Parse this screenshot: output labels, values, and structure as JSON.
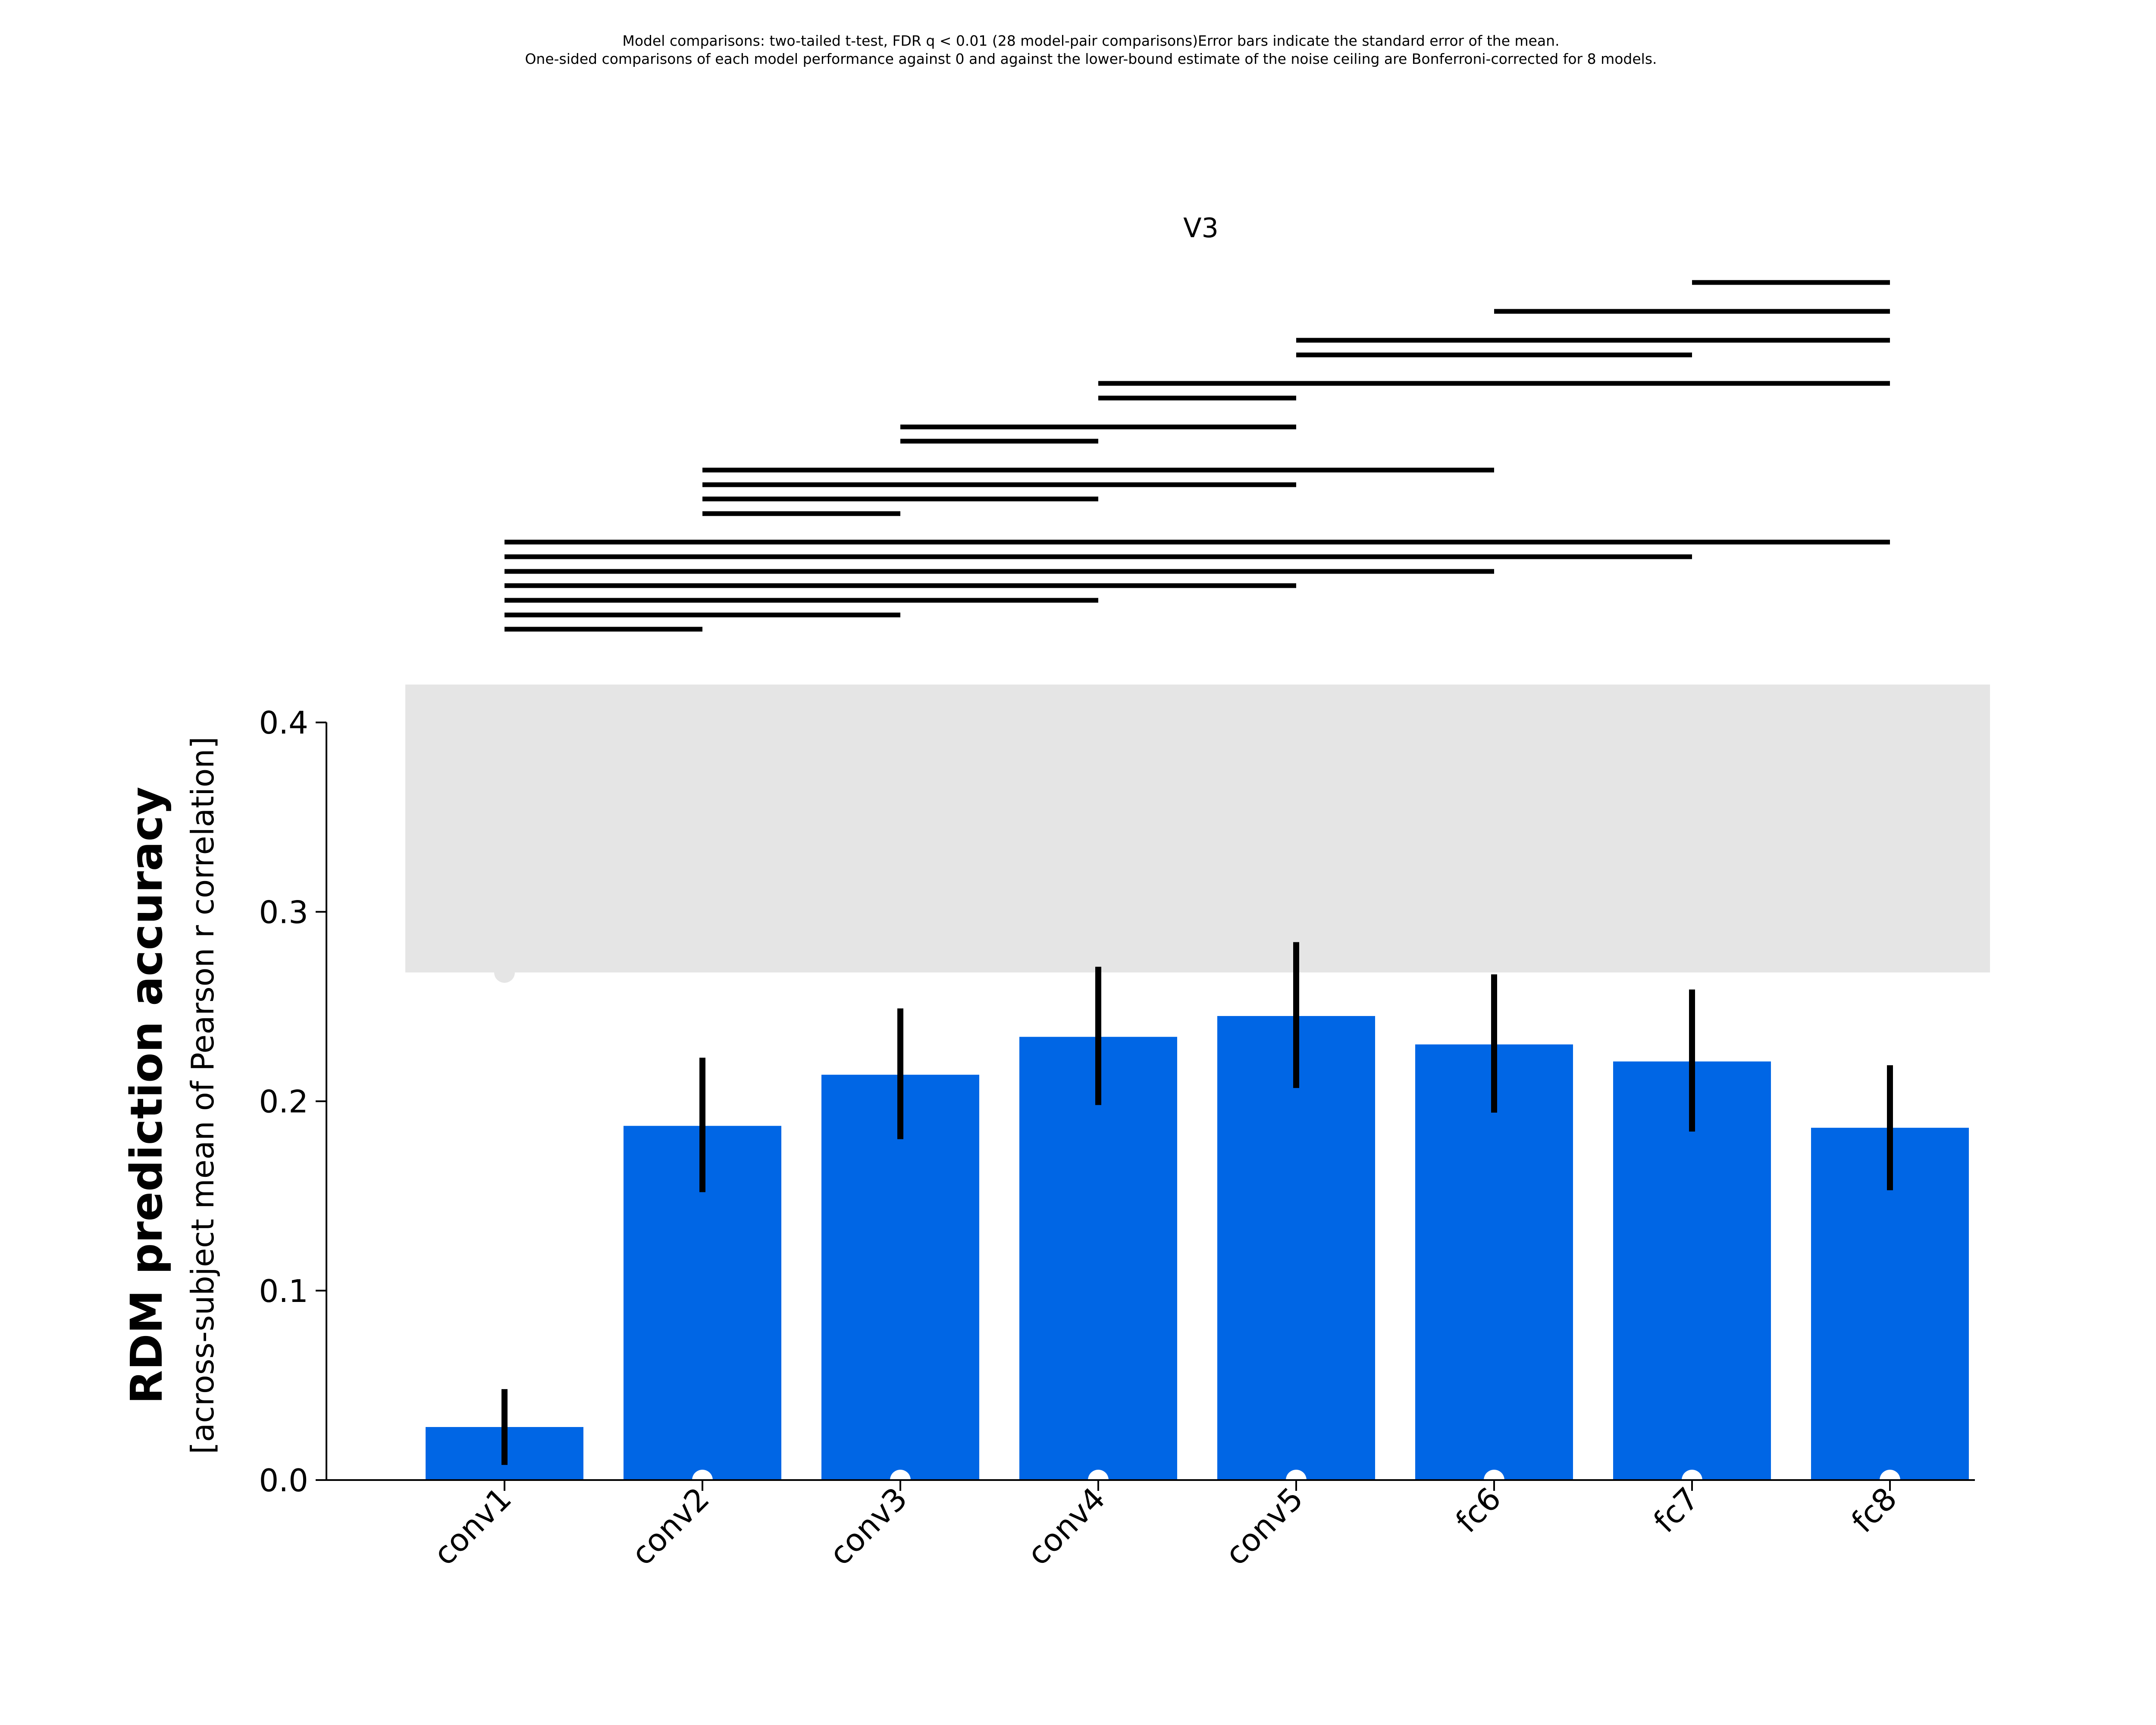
{
  "footnote": {
    "line1": "Model comparisons: two-tailed t-test, FDR q < 0.01 (28 model-pair comparisons)Error bars indicate the standard error of the mean.",
    "line2": "One-sided comparisons of each model performance against 0 and against the lower-bound estimate of the noise ceiling are Bonferroni-corrected for 8 models."
  },
  "chart_data": {
    "type": "bar",
    "title": "V3",
    "ylabel": "RDM prediction accuracy",
    "ylabel_sub": "[across-subject mean of Pearson r correlation]",
    "categories": [
      "conv1",
      "conv2",
      "conv3",
      "conv4",
      "conv5",
      "fc6",
      "fc7",
      "fc8"
    ],
    "values": [
      0.028,
      0.187,
      0.214,
      0.234,
      0.245,
      0.23,
      0.221,
      0.186
    ],
    "error_low": [
      0.008,
      0.152,
      0.18,
      0.198,
      0.207,
      0.194,
      0.184,
      0.153
    ],
    "error_high": [
      0.048,
      0.223,
      0.249,
      0.271,
      0.284,
      0.267,
      0.259,
      0.219
    ],
    "significant_vs_zero": [
      false,
      true,
      true,
      true,
      true,
      true,
      true,
      true
    ],
    "above_noise_ceiling_marker": [
      true,
      false,
      false,
      false,
      false,
      false,
      false,
      false
    ],
    "ylim": [
      0,
      0.4
    ],
    "yticks": [
      "0.0",
      "0.1",
      "0.2",
      "0.3",
      "0.4"
    ],
    "noise_ceiling": {
      "lower": 0.268,
      "upper": 0.42
    },
    "pairwise_significant": [
      [
        "fc7",
        "fc8"
      ],
      [
        "fc6",
        "fc8"
      ],
      [
        "conv5",
        "fc8"
      ],
      [
        "conv5",
        "fc7"
      ],
      [
        "conv4",
        "fc8"
      ],
      [
        "conv4",
        "conv5"
      ],
      [
        "conv3",
        "conv5"
      ],
      [
        "conv3",
        "conv4"
      ],
      [
        "conv2",
        "fc6"
      ],
      [
        "conv2",
        "conv5"
      ],
      [
        "conv2",
        "conv4"
      ],
      [
        "conv2",
        "conv3"
      ],
      [
        "conv1",
        "fc8"
      ],
      [
        "conv1",
        "fc7"
      ],
      [
        "conv1",
        "fc6"
      ],
      [
        "conv1",
        "conv5"
      ],
      [
        "conv1",
        "conv4"
      ],
      [
        "conv1",
        "conv3"
      ],
      [
        "conv1",
        "conv2"
      ]
    ],
    "colors": {
      "bar": "#0066e5",
      "noise_ceiling": "#e5e5e5",
      "errorbar": "#000000",
      "marker_zero": "#ffffff",
      "marker_ceiling": "#e5e5e5"
    }
  }
}
